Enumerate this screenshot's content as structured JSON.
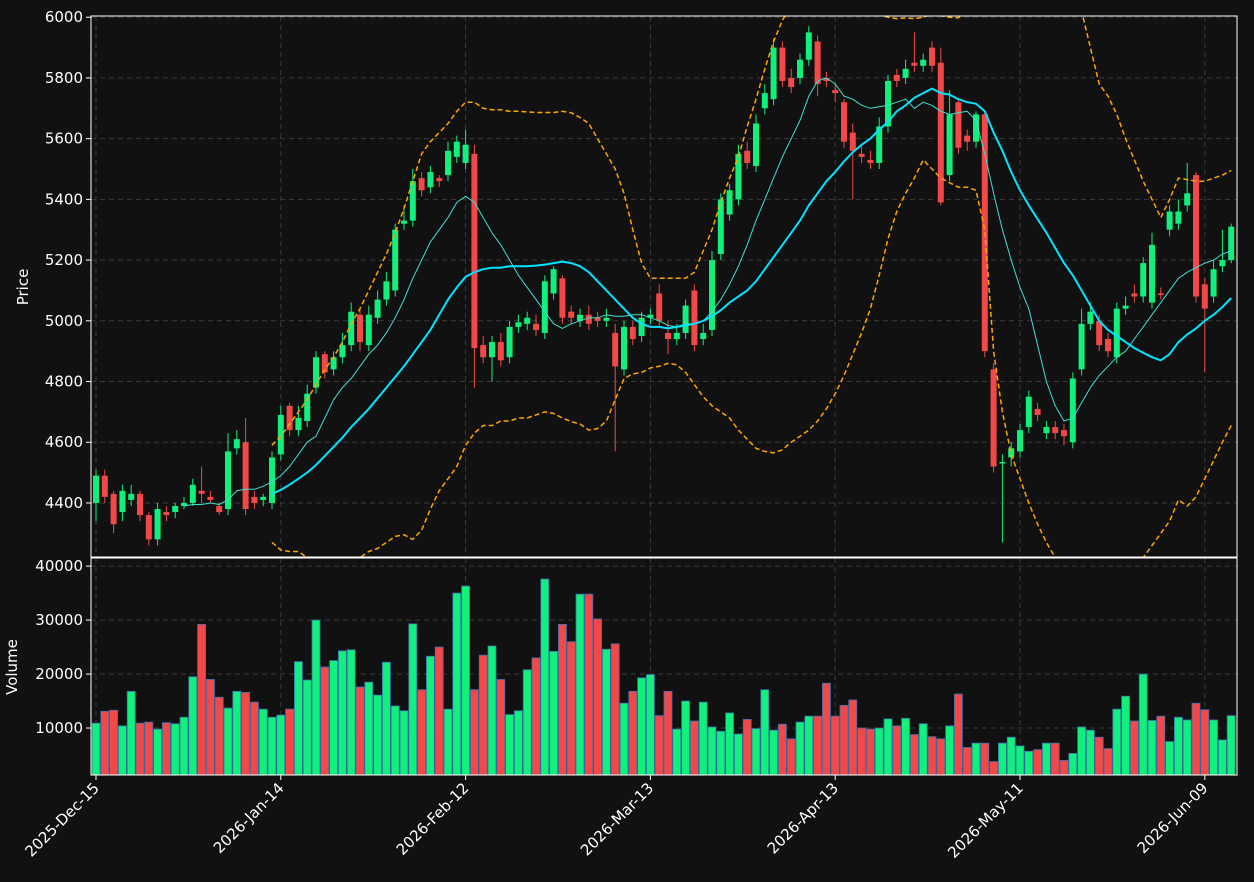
{
  "chart_data": {
    "type": "candlestick",
    "categories": [
      "2025-Dec-15",
      null,
      null,
      null,
      null,
      null,
      null,
      null,
      null,
      null,
      null,
      null,
      null,
      null,
      null,
      null,
      null,
      null,
      null,
      null,
      null,
      "2026-Jan-14",
      null,
      null,
      null,
      null,
      null,
      null,
      null,
      null,
      null,
      null,
      null,
      null,
      null,
      null,
      null,
      null,
      null,
      null,
      null,
      null,
      "2026-Feb-12",
      null,
      null,
      null,
      null,
      null,
      null,
      null,
      null,
      null,
      null,
      null,
      null,
      null,
      null,
      null,
      null,
      null,
      null,
      null,
      null,
      "2026-Mar-13",
      null,
      null,
      null,
      null,
      null,
      null,
      null,
      null,
      null,
      null,
      null,
      null,
      null,
      null,
      null,
      null,
      null,
      null,
      null,
      null,
      "2026-Apr-13",
      null,
      null,
      null,
      null,
      null,
      null,
      null,
      null,
      null,
      null,
      null,
      null,
      null,
      null,
      null,
      null,
      null,
      null,
      null,
      null,
      "2026-May-11",
      null,
      null,
      null,
      null,
      null,
      null,
      null,
      null,
      null,
      null,
      null,
      null,
      null,
      null,
      null,
      null,
      null,
      null,
      null,
      null,
      "2026-Jun-09",
      null,
      null,
      null
    ],
    "open": [
      4400,
      4490,
      4430,
      4370,
      4410,
      4430,
      4360,
      4280,
      4370,
      4370,
      4390,
      4400,
      4440,
      4420,
      4390,
      4380,
      4580,
      4600,
      4420,
      4410,
      4400,
      4560,
      4720,
      4640,
      4670,
      4780,
      4890,
      4840,
      4880,
      4920,
      5020,
      4920,
      5010,
      5070,
      5100,
      5320,
      5330,
      5470,
      5440,
      5470,
      5480,
      5540,
      5520,
      5550,
      4920,
      4880,
      4930,
      4880,
      4980,
      4990,
      4990,
      4960,
      5090,
      5140,
      5030,
      5000,
      5020,
      5010,
      5000,
      4960,
      4840,
      4980,
      4950,
      5010,
      5090,
      4960,
      4940,
      4960,
      5100,
      4940,
      4970,
      5220,
      5350,
      5400,
      5560,
      5510,
      5700,
      5730,
      5900,
      5800,
      5800,
      5860,
      5920,
      5800,
      5760,
      5720,
      5620,
      5550,
      5530,
      5520,
      5640,
      5810,
      5800,
      5850,
      5840,
      5900,
      5850,
      5480,
      5720,
      5610,
      5590,
      5680,
      4840,
      4530,
      4550,
      4570,
      4650,
      4710,
      4630,
      4650,
      4640,
      4600,
      4840,
      4990,
      5000,
      4940,
      4880,
      5040,
      5090,
      5080,
      5060,
      5090,
      5300,
      5320,
      5380,
      5480,
      5120,
      5080,
      5180,
      5200
    ],
    "high": [
      4510,
      4510,
      4440,
      4460,
      4460,
      4440,
      4370,
      4400,
      4390,
      4400,
      4420,
      4480,
      4520,
      4440,
      4400,
      4630,
      4640,
      4680,
      4440,
      4430,
      4570,
      4720,
      4730,
      4720,
      4790,
      4900,
      4900,
      4900,
      4960,
      5060,
      5040,
      5050,
      5100,
      5160,
      5320,
      5380,
      5500,
      5490,
      5510,
      5480,
      5590,
      5610,
      5630,
      5580,
      4950,
      4950,
      4960,
      5000,
      5020,
      5030,
      5020,
      5150,
      5180,
      5150,
      5050,
      5040,
      5050,
      5030,
      5040,
      4990,
      5000,
      5000,
      5030,
      5040,
      5120,
      5000,
      4990,
      5070,
      5120,
      4990,
      5230,
      5420,
      5450,
      5580,
      5590,
      5680,
      5780,
      5930,
      5920,
      5830,
      5880,
      5970,
      5940,
      5820,
      5780,
      5730,
      5650,
      5580,
      5560,
      5670,
      5810,
      5830,
      5860,
      5950,
      5880,
      5920,
      5900,
      5760,
      5730,
      5630,
      5690,
      5690,
      4860,
      4560,
      4600,
      4660,
      4770,
      4730,
      4670,
      4670,
      4660,
      4830,
      5040,
      5060,
      5020,
      4960,
      5060,
      5080,
      5120,
      5210,
      5290,
      5110,
      5380,
      5400,
      5520,
      5490,
      5140,
      5200,
      5300,
      5320
    ],
    "low": [
      4340,
      4400,
      4300,
      4340,
      4390,
      4340,
      4260,
      4260,
      4340,
      4350,
      4380,
      4390,
      4400,
      4400,
      4360,
      4360,
      4560,
      4360,
      4380,
      4390,
      4380,
      4540,
      4620,
      4620,
      4650,
      4760,
      4810,
      4820,
      4860,
      4900,
      4900,
      4900,
      4990,
      5050,
      5080,
      5300,
      5310,
      5410,
      5420,
      5440,
      5460,
      5520,
      5500,
      4780,
      4860,
      4800,
      4850,
      4860,
      4960,
      4970,
      4950,
      4940,
      5070,
      4990,
      4990,
      4980,
      4970,
      4980,
      4980,
      4570,
      4820,
      4920,
      4930,
      4990,
      4980,
      4890,
      4920,
      4940,
      4900,
      4920,
      4950,
      5200,
      5330,
      5380,
      5500,
      5490,
      5680,
      5710,
      5770,
      5750,
      5780,
      5840,
      5740,
      5770,
      5720,
      5570,
      5400,
      5520,
      5500,
      5500,
      5620,
      5770,
      5780,
      5820,
      5820,
      5820,
      5380,
      5460,
      5550,
      5560,
      5570,
      4880,
      4500,
      4270,
      4520,
      4550,
      4630,
      4670,
      4610,
      4610,
      4590,
      4580,
      4820,
      4970,
      4900,
      4880,
      4860,
      5020,
      5060,
      5060,
      5040,
      5070,
      5280,
      5300,
      5360,
      5060,
      4830,
      5060,
      5160,
      5190
    ],
    "close": [
      4490,
      4420,
      4330,
      4440,
      4430,
      4360,
      4280,
      4380,
      4360,
      4390,
      4400,
      4460,
      4430,
      4410,
      4370,
      4570,
      4610,
      4380,
      4400,
      4420,
      4550,
      4690,
      4640,
      4680,
      4760,
      4880,
      4830,
      4880,
      4920,
      5030,
      4930,
      5020,
      5070,
      5130,
      5300,
      5330,
      5460,
      5430,
      5490,
      5460,
      5560,
      5590,
      5580,
      4910,
      4880,
      4930,
      4870,
      4980,
      4995,
      5010,
      4970,
      5130,
      5170,
      5010,
      5010,
      5020,
      4990,
      5000,
      5010,
      4850,
      4980,
      4940,
      5010,
      5020,
      5000,
      4940,
      4960,
      5050,
      4920,
      4960,
      5200,
      5400,
      5430,
      5550,
      5520,
      5650,
      5750,
      5900,
      5790,
      5770,
      5860,
      5950,
      5780,
      5790,
      5750,
      5590,
      5560,
      5540,
      5520,
      5640,
      5790,
      5790,
      5830,
      5840,
      5860,
      5840,
      5390,
      5680,
      5570,
      5590,
      5680,
      4900,
      4520,
      4535,
      4580,
      4640,
      4750,
      4690,
      4650,
      4630,
      4620,
      4810,
      4990,
      5030,
      4920,
      4900,
      5040,
      5050,
      5080,
      5190,
      5250,
      5085,
      5360,
      5360,
      5420,
      5080,
      5040,
      5170,
      5200,
      5310
    ],
    "up_color": "#0ff07c",
    "down_color": "#f24848",
    "overlays": [
      {
        "style": "thin",
        "color": "#40e0d0",
        "values": [
          null,
          null,
          null,
          null,
          null,
          null,
          null,
          null,
          null,
          null,
          4390,
          4395,
          4395,
          4400,
          4395,
          4410,
          4440,
          4445,
          4445,
          4455,
          4470,
          4490,
          4520,
          4560,
          4600,
          4620,
          4680,
          4740,
          4780,
          4810,
          4850,
          4890,
          4920,
          4960,
          5010,
          5070,
          5140,
          5200,
          5260,
          5300,
          5340,
          5390,
          5410,
          5390,
          5340,
          5290,
          5250,
          5200,
          5150,
          5110,
          5070,
          5030,
          4990,
          4975,
          4990,
          5000,
          5010,
          5010,
          5020,
          5015,
          5015,
          5020,
          5020,
          5010,
          5000,
          4985,
          4980,
          4990,
          4990,
          5000,
          5030,
          5070,
          5120,
          5180,
          5250,
          5330,
          5400,
          5470,
          5540,
          5600,
          5660,
          5740,
          5790,
          5800,
          5780,
          5740,
          5730,
          5710,
          5700,
          5705,
          5710,
          5720,
          5730,
          5700,
          5720,
          5710,
          5690,
          5680,
          5685,
          5690,
          5660,
          5550,
          5420,
          5300,
          5200,
          5110,
          5040,
          4920,
          4800,
          4720,
          4670,
          4680,
          4730,
          4780,
          4820,
          4850,
          4880,
          4900,
          4940,
          4980,
          5020,
          5060,
          5100,
          5140,
          5160,
          5175,
          5190,
          5200,
          5220,
          5230
        ]
      },
      {
        "style": "thick",
        "color": "#00e5ff",
        "values": [
          null,
          null,
          null,
          null,
          null,
          null,
          null,
          null,
          null,
          null,
          null,
          null,
          null,
          null,
          null,
          null,
          null,
          null,
          null,
          null,
          4430,
          4443,
          4460,
          4480,
          4500,
          4525,
          4555,
          4585,
          4615,
          4650,
          4680,
          4710,
          4745,
          4780,
          4815,
          4850,
          4890,
          4930,
          4970,
          5020,
          5070,
          5110,
          5145,
          5160,
          5170,
          5175,
          5175,
          5180,
          5180,
          5180,
          5182,
          5185,
          5190,
          5195,
          5190,
          5180,
          5160,
          5130,
          5100,
          5070,
          5040,
          5010,
          4990,
          4980,
          4980,
          4975,
          4980,
          4985,
          4990,
          5000,
          5015,
          5035,
          5060,
          5080,
          5100,
          5130,
          5170,
          5210,
          5250,
          5290,
          5330,
          5380,
          5420,
          5460,
          5490,
          5525,
          5555,
          5580,
          5600,
          5630,
          5655,
          5690,
          5710,
          5735,
          5750,
          5765,
          5750,
          5745,
          5730,
          5720,
          5715,
          5690,
          5620,
          5560,
          5490,
          5430,
          5380,
          5335,
          5290,
          5240,
          5190,
          5150,
          5100,
          5050,
          5000,
          4970,
          4950,
          4930,
          4910,
          4895,
          4880,
          4870,
          4890,
          4930,
          4955,
          4975,
          5000,
          5020,
          5045,
          5075
        ]
      },
      {
        "style": "dashed",
        "color": "#ffa500",
        "values": [
          null,
          null,
          null,
          null,
          null,
          null,
          null,
          null,
          null,
          null,
          null,
          null,
          null,
          null,
          null,
          null,
          null,
          null,
          null,
          null,
          4590,
          4620,
          4660,
          4700,
          4740,
          4790,
          4840,
          4880,
          4930,
          4990,
          5040,
          5100,
          5160,
          5220,
          5290,
          5370,
          5460,
          5550,
          5590,
          5620,
          5650,
          5690,
          5720,
          5720,
          5700,
          5695,
          5695,
          5690,
          5690,
          5688,
          5686,
          5686,
          5686,
          5690,
          5685,
          5670,
          5650,
          5600,
          5550,
          5500,
          5420,
          5300,
          5190,
          5140,
          5140,
          5140,
          5140,
          5140,
          5160,
          5230,
          5300,
          5390,
          5470,
          5540,
          5640,
          5730,
          5830,
          5920,
          5990,
          6040,
          6070,
          6080,
          6080,
          6070,
          6060,
          6050,
          6040,
          6040,
          6030,
          6010,
          6000,
          5995,
          5998,
          5995,
          6000,
          6010,
          6005,
          6000,
          5998,
          6020,
          6060,
          6100,
          6150,
          6200,
          6220,
          6230,
          6230,
          6220,
          6200,
          6170,
          6130,
          6080,
          6020,
          5900,
          5780,
          5740,
          5680,
          5600,
          5530,
          5460,
          5400,
          5340,
          5400,
          5470,
          5465,
          5460,
          5460,
          5470,
          5480,
          5495
        ]
      },
      {
        "style": "dashed",
        "color": "#ffa500",
        "values": [
          null,
          null,
          null,
          null,
          null,
          null,
          null,
          null,
          null,
          null,
          null,
          null,
          null,
          null,
          null,
          null,
          null,
          null,
          null,
          null,
          4270,
          4245,
          4240,
          4240,
          4220,
          4205,
          4200,
          4205,
          4210,
          4212,
          4220,
          4240,
          4250,
          4270,
          4290,
          4295,
          4280,
          4310,
          4380,
          4440,
          4480,
          4520,
          4590,
          4630,
          4655,
          4655,
          4670,
          4670,
          4680,
          4680,
          4690,
          4700,
          4695,
          4680,
          4668,
          4660,
          4640,
          4645,
          4670,
          4740,
          4810,
          4825,
          4830,
          4845,
          4850,
          4860,
          4855,
          4830,
          4790,
          4750,
          4720,
          4700,
          4680,
          4640,
          4610,
          4580,
          4570,
          4565,
          4575,
          4600,
          4620,
          4640,
          4670,
          4710,
          4760,
          4820,
          4890,
          4960,
          5040,
          5150,
          5270,
          5360,
          5420,
          5470,
          5530,
          5500,
          5470,
          5455,
          5440,
          5440,
          5430,
          5300,
          4900,
          4700,
          4560,
          4480,
          4400,
          4330,
          4270,
          4220,
          4180,
          4140,
          4110,
          4100,
          4095,
          4100,
          4115,
          4140,
          4180,
          4220,
          4260,
          4300,
          4340,
          4410,
          4390,
          4420,
          4480,
          4540,
          4600,
          4655
        ]
      }
    ],
    "ylabel": "Price",
    "ylim": [
      4222,
      6004
    ],
    "yticks": [
      4400,
      4600,
      4800,
      5000,
      5200,
      5400,
      5600,
      5800,
      6000
    ],
    "grid": true,
    "volume": {
      "ylabel": "Volume",
      "edge_color": "#3f6fae",
      "ylim": [
        1300,
        41500
      ],
      "yticks": [
        10000,
        20000,
        30000,
        40000
      ],
      "values": [
        10900,
        13100,
        13300,
        10400,
        16800,
        10900,
        11100,
        9800,
        11000,
        10800,
        12000,
        19500,
        29200,
        19000,
        15700,
        13700,
        16800,
        16600,
        14800,
        13500,
        12000,
        12400,
        13500,
        22300,
        18900,
        30000,
        21300,
        22500,
        24300,
        24500,
        17600,
        18500,
        16100,
        22200,
        14100,
        13200,
        29300,
        17100,
        23300,
        25000,
        13500,
        35000,
        36300,
        17100,
        23500,
        25200,
        19000,
        12500,
        13200,
        20800,
        23000,
        37600,
        24200,
        29200,
        26000,
        34800,
        34800,
        30200,
        24600,
        25600,
        14600,
        16800,
        19300,
        19900,
        12300,
        16800,
        9800,
        15000,
        11300,
        14800,
        10200,
        9400,
        12800,
        8900,
        11600,
        9900,
        17100,
        9600,
        10700,
        8000,
        11100,
        12200,
        12200,
        18300,
        12200,
        14200,
        15200,
        10000,
        9800,
        10000,
        11700,
        10400,
        11800,
        8800,
        10800,
        8400,
        8000,
        10400,
        16300,
        6400,
        7200,
        7200,
        3800,
        7200,
        8300,
        6700,
        5700,
        6000,
        7200,
        7200,
        4000,
        5300,
        10200,
        9600,
        8300,
        6200,
        13500,
        15900,
        11300,
        20000,
        11400,
        12200,
        7500,
        12000,
        11500,
        14600,
        13400,
        11500,
        7800,
        12300
      ]
    }
  }
}
